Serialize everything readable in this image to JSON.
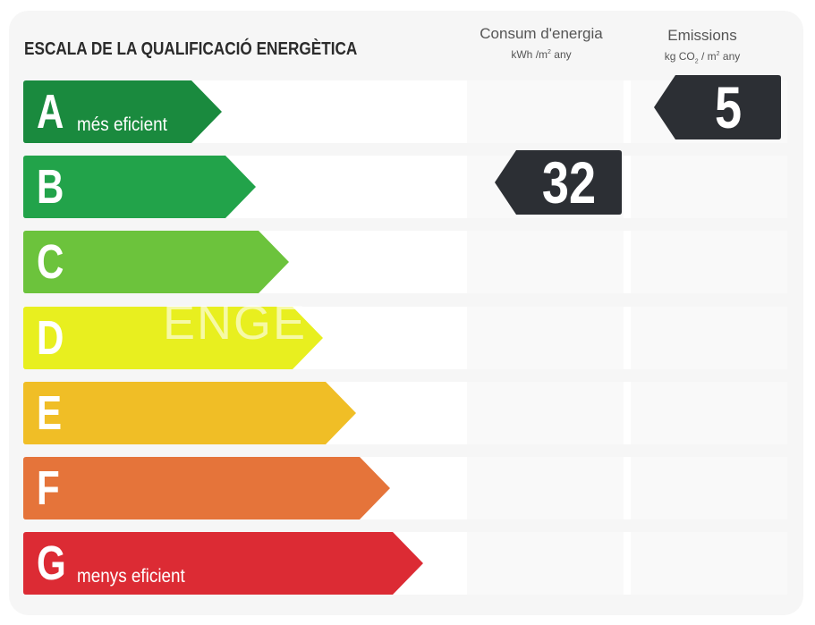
{
  "title": "ESCALA DE LA QUALIFICACIÓ ENERGÈTICA",
  "columns": {
    "consumption": {
      "label": "Consum d'energia",
      "unit_pre": "kWh /m",
      "unit_sup": "2",
      "unit_post": " any"
    },
    "emissions": {
      "label": "Emissions",
      "unit_pre": "kg CO",
      "unit_sub": "2",
      "unit_mid": " / m",
      "unit_sup": "2",
      "unit_post": " any"
    }
  },
  "bands": [
    {
      "letter": "A",
      "note": "més eficient",
      "color": "#1a8a3e"
    },
    {
      "letter": "B",
      "note": "",
      "color": "#22a34a"
    },
    {
      "letter": "C",
      "note": "",
      "color": "#6cc33c"
    },
    {
      "letter": "D",
      "note": "",
      "color": "#e8ef1f"
    },
    {
      "letter": "E",
      "note": "",
      "color": "#f0be26"
    },
    {
      "letter": "F",
      "note": "",
      "color": "#e5743a"
    },
    {
      "letter": "G",
      "note": "menys eficient",
      "color": "#dc2b34"
    }
  ],
  "consumption_rating": {
    "value": "32",
    "band": "B",
    "color": "#2c2f34"
  },
  "emissions_rating": {
    "value": "5",
    "band": "A",
    "color": "#2c2f34"
  },
  "watermark": "ENGE"
}
